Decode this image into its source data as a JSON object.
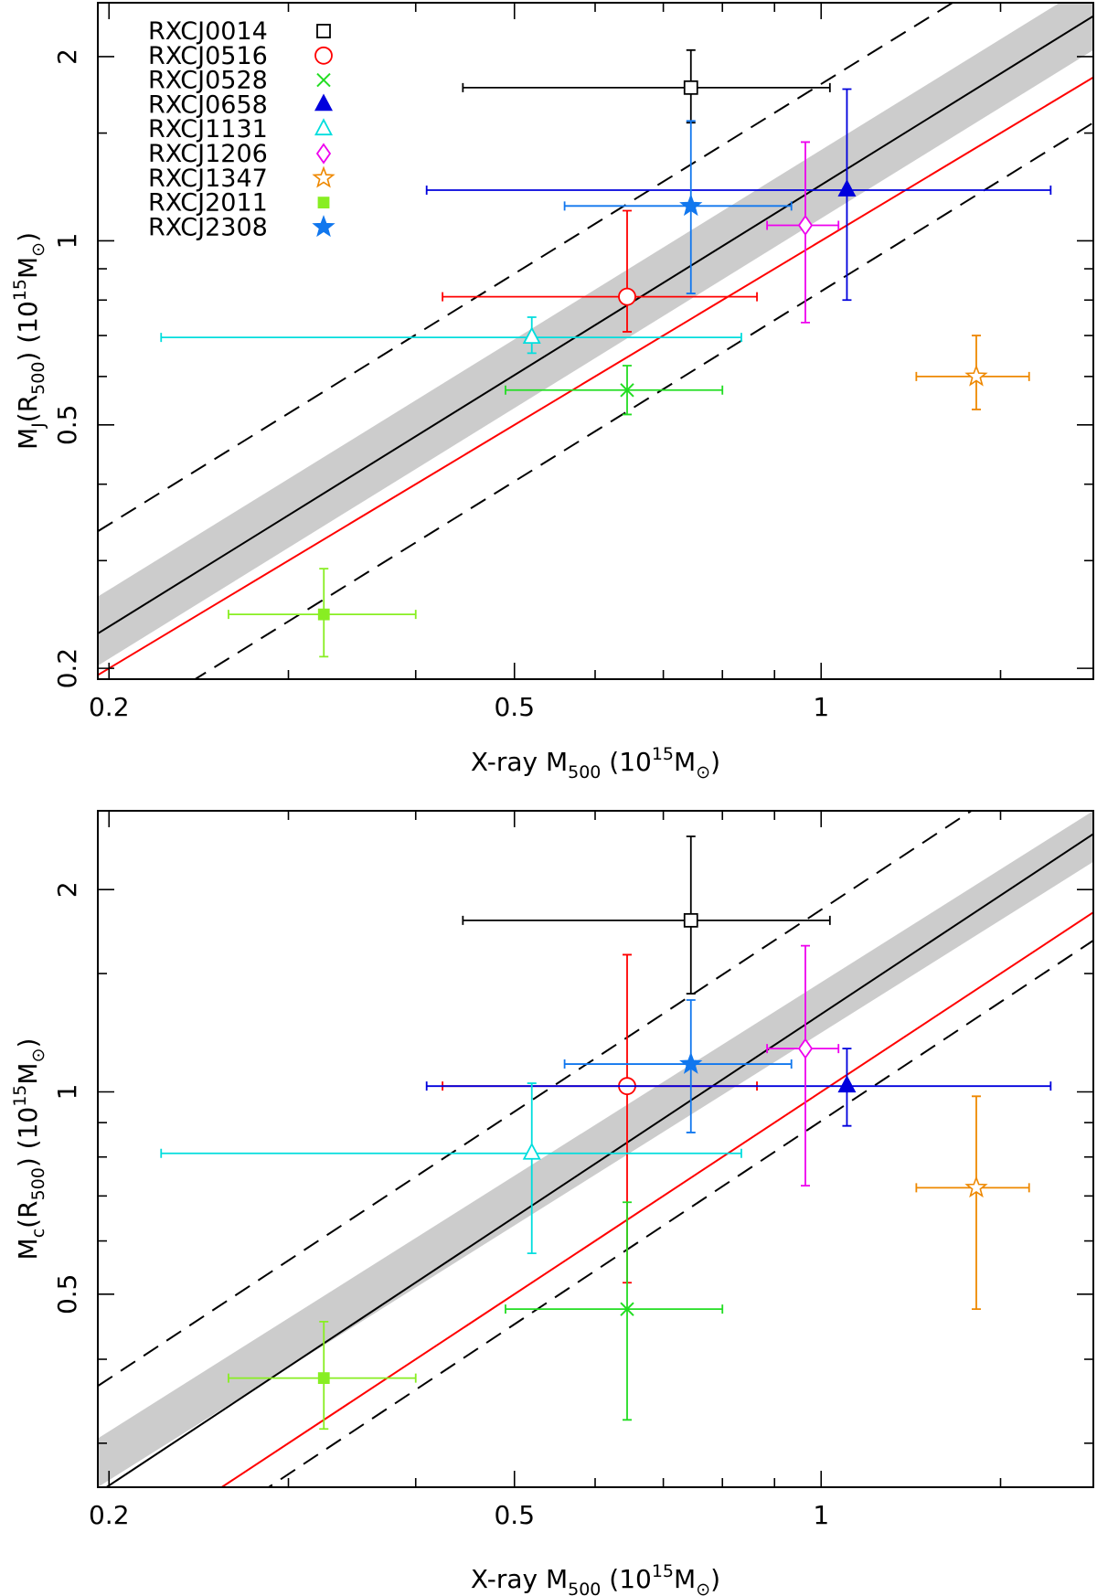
{
  "chart_data": [
    {
      "type": "scatter",
      "panel": "top",
      "xlabel": {
        "pre": "X-ray M",
        "sub": "500",
        "mid": " (10",
        "sup": "15",
        "unit": "M",
        "odot": "⊙",
        "post": ")"
      },
      "ylabel": {
        "pre": "M",
        "sub1": "J",
        "mid1": "(R",
        "sub2": "500",
        "mid2": ") (10",
        "sup": "15",
        "unit": "M",
        "odot": "⊙",
        "post": ")"
      },
      "x_scale": "log",
      "y_scale": "log",
      "xlim": [
        0.195,
        1.85
      ],
      "ylim": [
        0.192,
        2.45
      ],
      "x_ticks": [
        {
          "value": 0.2,
          "label": "0.2"
        },
        {
          "value": 0.5,
          "label": "0.5"
        },
        {
          "value": 1,
          "label": "1"
        }
      ],
      "y_ticks": [
        {
          "value": 0.2,
          "label": "0.2"
        },
        {
          "value": 0.5,
          "label": "0.5"
        },
        {
          "value": 1,
          "label": "1"
        },
        {
          "value": 2,
          "label": "2"
        }
      ],
      "fit_band": {
        "low": [
          [
            0.195,
            0.202
          ],
          [
            1.85,
            2.05
          ]
        ],
        "high": [
          [
            0.195,
            0.262
          ],
          [
            1.85,
            2.65
          ]
        ],
        "color": "#cccccc"
      },
      "fit_line": {
        "points": [
          [
            0.195,
            0.228
          ],
          [
            1.85,
            2.33
          ]
        ],
        "color": "#000000"
      },
      "scatter_lines": [
        {
          "points": [
            [
              0.195,
              0.335
            ],
            [
              1.85,
              3.4
            ]
          ],
          "color": "#000000"
        },
        {
          "points": [
            [
              0.195,
              0.153
            ],
            [
              1.85,
              1.56
            ]
          ],
          "color": "#000000"
        }
      ],
      "reference_line": {
        "points": [
          [
            0.195,
            0.195
          ],
          [
            1.85,
            1.85
          ]
        ],
        "color": "#ff0000"
      },
      "legend_position": "top-left",
      "series": [
        {
          "name": "RXCJ0014",
          "color": "#000000",
          "marker": "square-open",
          "x": 0.745,
          "xerr": [
            0.445,
            1.02
          ],
          "y": 1.78,
          "yerr": [
            1.56,
            2.05
          ]
        },
        {
          "name": "RXCJ0516",
          "color": "#ff0000",
          "marker": "circle-open",
          "x": 0.645,
          "xerr": [
            0.425,
            0.865
          ],
          "y": 0.81,
          "yerr": [
            0.71,
            1.12
          ]
        },
        {
          "name": "RXCJ0528",
          "color": "#22dd22",
          "marker": "cross",
          "x": 0.645,
          "xerr": [
            0.49,
            0.8
          ],
          "y": 0.57,
          "yerr": [
            0.52,
            0.625
          ]
        },
        {
          "name": "RXCJ0658",
          "color": "#0000dd",
          "marker": "triangle-filled",
          "x": 1.06,
          "xerr": [
            0.41,
            1.68
          ],
          "y": 1.21,
          "yerr": [
            0.8,
            1.77
          ]
        },
        {
          "name": "RXCJ1131",
          "color": "#00dddd",
          "marker": "triangle-open",
          "x": 0.52,
          "xerr": [
            0.225,
            0.835
          ],
          "y": 0.695,
          "yerr": [
            0.655,
            0.75
          ]
        },
        {
          "name": "RXCJ1206",
          "color": "#ee00ee",
          "marker": "diamond-open",
          "x": 0.965,
          "xerr": [
            0.885,
            1.04
          ],
          "y": 1.06,
          "yerr": [
            0.735,
            1.45
          ]
        },
        {
          "name": "RXCJ1347",
          "color": "#ee8800",
          "marker": "star-open",
          "x": 1.42,
          "xerr": [
            1.24,
            1.6
          ],
          "y": 0.6,
          "yerr": [
            0.53,
            0.7
          ]
        },
        {
          "name": "RXCJ2011",
          "color": "#88ee22",
          "marker": "square-filled",
          "x": 0.325,
          "xerr": [
            0.262,
            0.4
          ],
          "y": 0.245,
          "yerr": [
            0.209,
            0.291
          ]
        },
        {
          "name": "RXCJ2308",
          "color": "#1177ee",
          "marker": "star-filled",
          "x": 0.745,
          "xerr": [
            0.56,
            0.935
          ],
          "y": 1.14,
          "yerr": [
            0.82,
            1.57
          ]
        }
      ]
    },
    {
      "type": "scatter",
      "panel": "bottom",
      "xlabel": {
        "pre": "X-ray M",
        "sub": "500",
        "mid": " (10",
        "sup": "15",
        "unit": "M",
        "odot": "⊙",
        "post": ")"
      },
      "ylabel": {
        "pre": "M",
        "sub1": "c",
        "mid1": "(R",
        "sub2": "500",
        "mid2": ") (10",
        "sup": "15",
        "unit": "M",
        "odot": "⊙",
        "post": ")"
      },
      "x_scale": "log",
      "y_scale": "log",
      "xlim": [
        0.195,
        1.85
      ],
      "ylim": [
        0.258,
        2.62
      ],
      "x_ticks": [
        {
          "value": 0.2,
          "label": "0.2"
        },
        {
          "value": 0.5,
          "label": "0.5"
        },
        {
          "value": 1,
          "label": "1"
        }
      ],
      "y_ticks": [
        {
          "value": 0.5,
          "label": "0.5"
        },
        {
          "value": 1,
          "label": "1"
        },
        {
          "value": 2,
          "label": "2"
        }
      ],
      "fit_band": {
        "low": [
          [
            0.195,
            0.258
          ],
          [
            1.85,
            2.2
          ]
        ],
        "high": [
          [
            0.195,
            0.305
          ],
          [
            1.85,
            2.62
          ]
        ],
        "color": "#cccccc"
      },
      "fit_line": {
        "points": [
          [
            0.195,
            0.253
          ],
          [
            1.85,
            2.42
          ]
        ],
        "color": "#000000"
      },
      "scatter_lines": [
        {
          "points": [
            [
              0.195,
              0.365
            ],
            [
              1.85,
              3.45
            ]
          ],
          "color": "#000000"
        },
        {
          "points": [
            [
              0.195,
              0.175
            ],
            [
              1.85,
              1.68
            ]
          ],
          "color": "#000000"
        }
      ],
      "reference_line": {
        "points": [
          [
            0.195,
            0.195
          ],
          [
            1.85,
            1.85
          ]
        ],
        "color": "#ff0000"
      },
      "series": [
        {
          "name": "RXCJ0014",
          "color": "#000000",
          "marker": "square-open",
          "x": 0.745,
          "xerr": [
            0.445,
            1.02
          ],
          "y": 1.8,
          "yerr": [
            1.4,
            2.4
          ]
        },
        {
          "name": "RXCJ0516",
          "color": "#ff0000",
          "marker": "circle-open",
          "x": 0.645,
          "xerr": [
            0.425,
            0.865
          ],
          "y": 1.02,
          "yerr": [
            0.52,
            1.6
          ]
        },
        {
          "name": "RXCJ0528",
          "color": "#22dd22",
          "marker": "cross",
          "x": 0.645,
          "xerr": [
            0.49,
            0.8
          ],
          "y": 0.475,
          "yerr": [
            0.325,
            0.685
          ]
        },
        {
          "name": "RXCJ0658",
          "color": "#0000dd",
          "marker": "triangle-filled",
          "x": 1.06,
          "xerr": [
            0.41,
            1.68
          ],
          "y": 1.02,
          "yerr": [
            0.89,
            1.16
          ]
        },
        {
          "name": "RXCJ1131",
          "color": "#00dddd",
          "marker": "triangle-open",
          "x": 0.52,
          "xerr": [
            0.225,
            0.835
          ],
          "y": 0.81,
          "yerr": [
            0.575,
            1.03
          ]
        },
        {
          "name": "RXCJ1206",
          "color": "#ee00ee",
          "marker": "diamond-open",
          "x": 0.965,
          "xerr": [
            0.885,
            1.04
          ],
          "y": 1.16,
          "yerr": [
            0.725,
            1.65
          ]
        },
        {
          "name": "RXCJ1347",
          "color": "#ee8800",
          "marker": "star-open",
          "x": 1.42,
          "xerr": [
            1.24,
            1.6
          ],
          "y": 0.72,
          "yerr": [
            0.475,
            0.985
          ]
        },
        {
          "name": "RXCJ2011",
          "color": "#88ee22",
          "marker": "square-filled",
          "x": 0.325,
          "xerr": [
            0.262,
            0.4
          ],
          "y": 0.375,
          "yerr": [
            0.315,
            0.455
          ]
        },
        {
          "name": "RXCJ2308",
          "color": "#1177ee",
          "marker": "star-filled",
          "x": 0.745,
          "xerr": [
            0.56,
            0.935
          ],
          "y": 1.1,
          "yerr": [
            0.87,
            1.37
          ]
        }
      ]
    }
  ]
}
